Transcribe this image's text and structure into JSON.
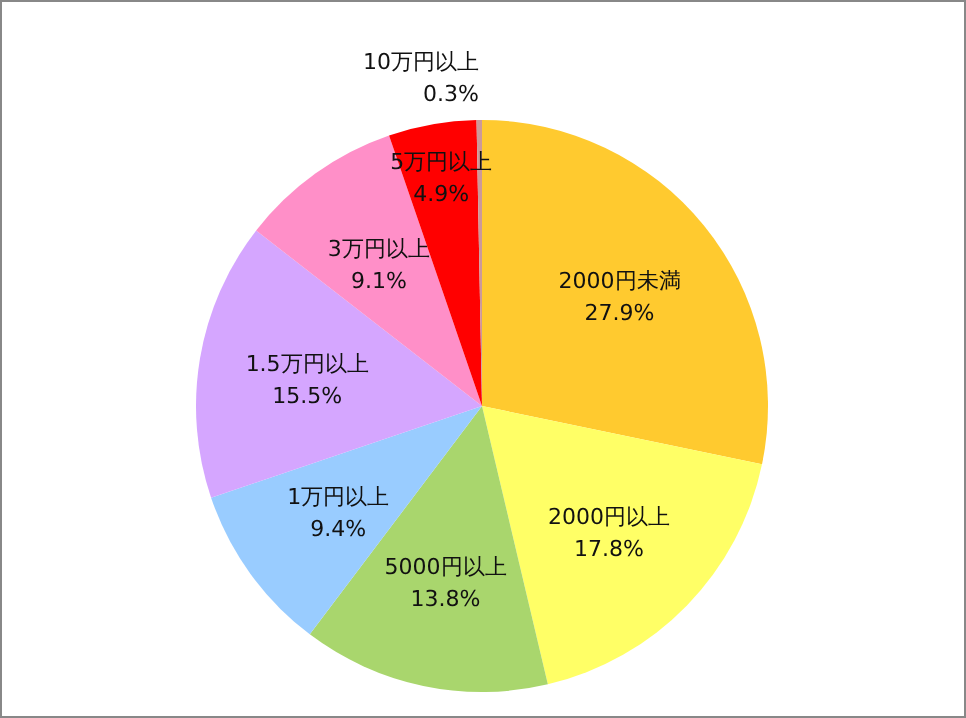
{
  "chart_data": {
    "type": "pie",
    "categories": [
      "2000円未満",
      "2000円以上",
      "5000円以上",
      "1万円以上",
      "1.5万円以上",
      "3万円以上",
      "5万円以上",
      "10万円以上"
    ],
    "values": [
      27.9,
      17.8,
      13.8,
      9.4,
      15.5,
      9.1,
      4.9,
      0.3
    ],
    "colors": [
      "#ffca2f",
      "#ffff66",
      "#a9d66d",
      "#99ccff",
      "#d5a6ff",
      "#ff8fc8",
      "#ff0000",
      "#cc9999"
    ],
    "value_labels": [
      "27.9%",
      "17.8%",
      "13.8%",
      "9.4%",
      "15.5%",
      "9.1%",
      "4.9%",
      "0.3%"
    ]
  }
}
